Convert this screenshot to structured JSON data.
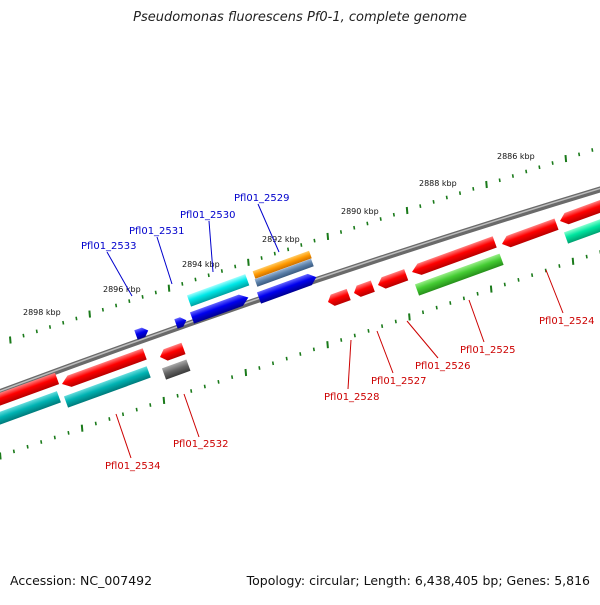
{
  "title": "Pseudomonas fluorescens Pf0-1, complete genome",
  "footer": {
    "accession": "Accession: NC_007492",
    "summary": "Topology: circular; Length: 6,438,405 bp; Genes: 5,816"
  },
  "tick_labels": [
    "2886 kbp",
    "2888 kbp",
    "2890 kbp",
    "2892 kbp",
    "2894 kbp",
    "2896 kbp",
    "2898 kbp"
  ],
  "top_genes": [
    "Pfl01_2529",
    "Pfl01_2530",
    "Pfl01_2531",
    "Pfl01_2533"
  ],
  "bottom_genes": [
    "Pfl01_2524",
    "Pfl01_2525",
    "Pfl01_2526",
    "Pfl01_2527",
    "Pfl01_2528",
    "Pfl01_2532",
    "Pfl01_2534"
  ],
  "colors": {
    "top_label": "#0000cc",
    "bottom_label": "#cc0000",
    "backbone": "#808080",
    "tick": "#1a7a1a",
    "red": "#ff0000",
    "blue": "#0000ee",
    "cyan": "#00e0e0",
    "teal": "#00b3b3",
    "green": "#44cc33",
    "spring_green": "#00e6a0",
    "orange": "#ff9900",
    "steel": "#5a7fa8",
    "gray": "#666666"
  }
}
